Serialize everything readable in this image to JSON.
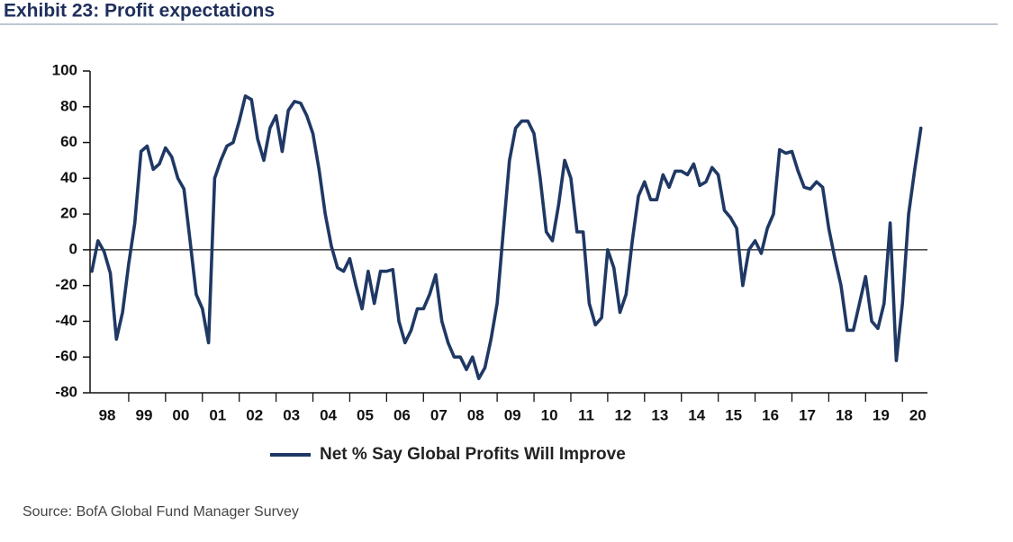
{
  "chart_data": {
    "type": "line",
    "title": "Exhibit 23: Profit expectations",
    "source": "Source: BofA Global Fund Manager Survey",
    "categories": [
      null,
      null,
      null,
      "98",
      null,
      null,
      null,
      null,
      null,
      "99",
      null,
      null,
      null,
      null,
      null,
      "00",
      null,
      null,
      null,
      null,
      null,
      "01",
      null,
      null,
      null,
      null,
      null,
      "02",
      null,
      null,
      null,
      null,
      null,
      "03",
      null,
      null,
      null,
      null,
      null,
      "04",
      null,
      null,
      null,
      null,
      null,
      "05",
      null,
      null,
      null,
      null,
      null,
      "06",
      null,
      null,
      null,
      null,
      null,
      "07",
      null,
      null,
      null,
      null,
      null,
      "08",
      null,
      null,
      null,
      null,
      null,
      "09",
      null,
      null,
      null,
      null,
      null,
      "10",
      null,
      null,
      null,
      null,
      null,
      "11",
      null,
      null,
      null,
      null,
      null,
      "12",
      null,
      null,
      null,
      null,
      null,
      "13",
      null,
      null,
      null,
      null,
      null,
      "14",
      null,
      null,
      null,
      null,
      null,
      "15",
      null,
      null,
      null,
      null,
      null,
      "16",
      null,
      null,
      null,
      null,
      null,
      "17",
      null,
      null,
      null,
      null,
      null,
      "18",
      null,
      null,
      null,
      null,
      null,
      "19",
      null,
      null,
      null,
      null,
      null,
      "20"
    ],
    "series": [
      {
        "name": "Net % Say Global Profits Will Improve",
        "color": "#1f3864",
        "values": [
          -12,
          5,
          -1,
          -13,
          -50,
          -35,
          -8,
          15,
          55,
          58,
          45,
          48,
          57,
          52,
          40,
          34,
          5,
          -25,
          -33,
          -52,
          40,
          50,
          58,
          60,
          72,
          86,
          84,
          62,
          50,
          68,
          75,
          55,
          78,
          83,
          82,
          75,
          65,
          45,
          20,
          2,
          -10,
          -12,
          -5,
          -20,
          -33,
          -12,
          -30,
          -12,
          -12,
          -11,
          -40,
          -52,
          -45,
          -33,
          -33,
          -25,
          -14,
          -40,
          -52,
          -60,
          -60,
          -67,
          -60,
          -72,
          -66,
          -50,
          -30,
          10,
          50,
          68,
          72,
          72,
          65,
          40,
          10,
          5,
          25,
          50,
          40,
          10,
          10,
          -30,
          -42,
          -38,
          0,
          -10,
          -35,
          -25,
          5,
          30,
          38,
          28,
          28,
          42,
          35,
          44,
          44,
          42,
          48,
          36,
          38,
          46,
          42,
          22,
          18,
          12,
          -20,
          0,
          5,
          -2,
          12,
          20,
          56,
          54,
          55,
          44,
          35,
          34,
          38,
          35,
          12,
          -5,
          -20,
          -45,
          -45,
          -30,
          -15,
          -40,
          -44,
          -30,
          15,
          -62,
          -30,
          20,
          45,
          68
        ]
      }
    ],
    "ylim": [
      -80,
      100
    ],
    "yticks": [
      -80,
      -60,
      -40,
      -20,
      0,
      20,
      40,
      60,
      80,
      100
    ],
    "legend": "bottom"
  }
}
